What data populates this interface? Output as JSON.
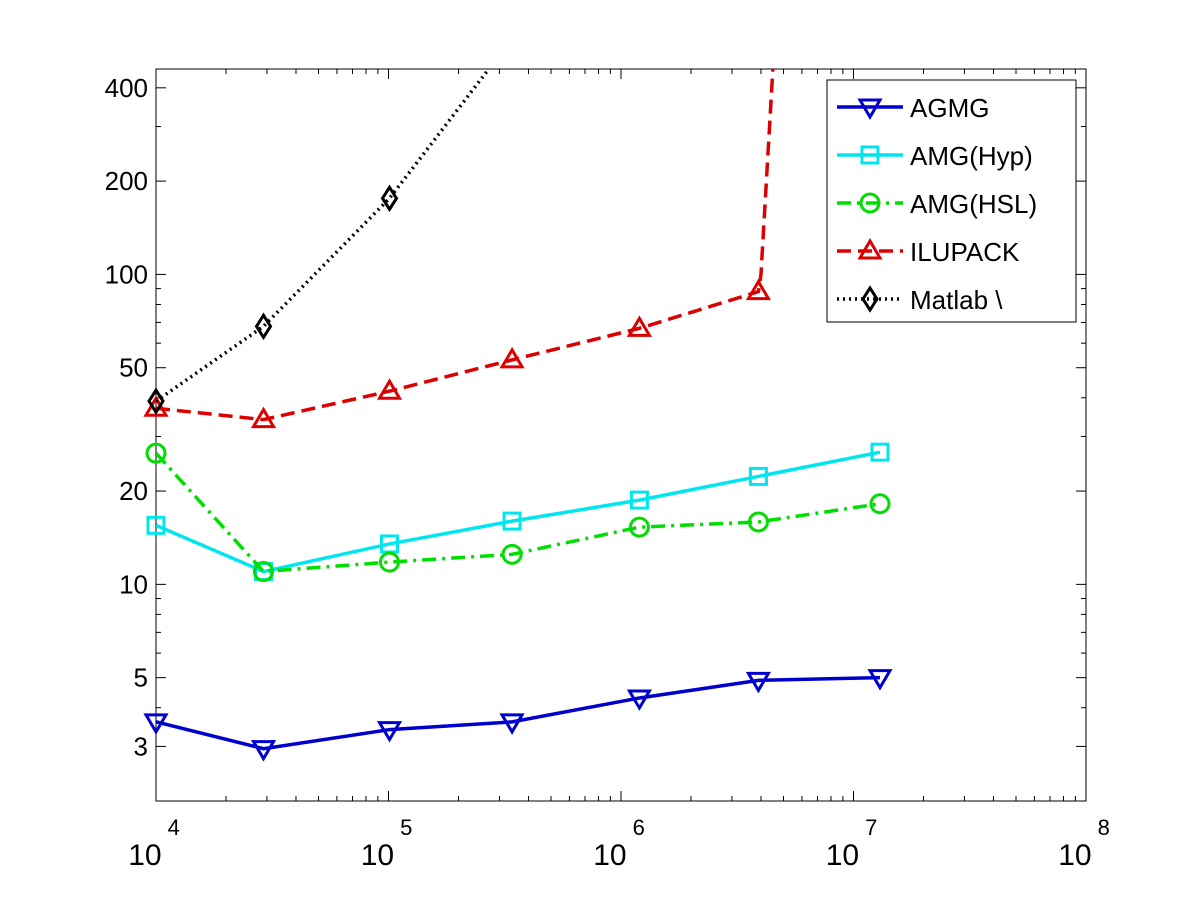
{
  "chart_data": {
    "type": "line",
    "title": "",
    "xlabel": "",
    "ylabel": "",
    "x_scale": "log",
    "y_scale": "log",
    "xlim": [
      10000,
      100000000
    ],
    "ylim": [
      2,
      460
    ],
    "x_ticks": [
      {
        "value": 10000,
        "base": "10",
        "exp": "4"
      },
      {
        "value": 100000,
        "base": "10",
        "exp": "5"
      },
      {
        "value": 1000000,
        "base": "10",
        "exp": "6"
      },
      {
        "value": 10000000,
        "base": "10",
        "exp": "7"
      },
      {
        "value": 100000000,
        "base": "10",
        "exp": "8"
      }
    ],
    "y_ticks": [
      3,
      5,
      10,
      20,
      50,
      100,
      200,
      400
    ],
    "y_tick_labels": [
      "3",
      "5",
      "10",
      "20",
      "50",
      "100",
      "200",
      "400"
    ],
    "grid": false,
    "legend_position": "top-right",
    "series": [
      {
        "name": "AGMG",
        "color": "#0000cc",
        "dash": "solid",
        "marker": "triangle-down",
        "x": [
          10000,
          29000,
          101000,
          340000,
          1200000,
          3900000,
          13000000
        ],
        "y": [
          3.6,
          2.95,
          3.4,
          3.6,
          4.3,
          4.9,
          5.0
        ]
      },
      {
        "name": "AMG(Hyp)",
        "color": "#00e5ee",
        "dash": "solid",
        "marker": "square",
        "x": [
          10000,
          29000,
          101000,
          340000,
          1200000,
          3900000,
          13000000
        ],
        "y": [
          15.5,
          11.0,
          13.5,
          16.0,
          18.7,
          22.3,
          26.7
        ]
      },
      {
        "name": "AMG(HSL)",
        "color": "#00dd00",
        "dash": "dashdot",
        "marker": "circle",
        "x": [
          10000,
          29000,
          101000,
          340000,
          1200000,
          3900000,
          13000000
        ],
        "y": [
          26.5,
          11.0,
          11.8,
          12.5,
          15.3,
          15.9,
          18.2
        ]
      },
      {
        "name": "ILUPACK",
        "color": "#dd0000",
        "dash": "dashed",
        "marker": "triangle-up",
        "x": [
          10000,
          29000,
          101000,
          340000,
          1200000,
          3900000,
          4000000,
          4500000
        ],
        "y": [
          37,
          34,
          42,
          53,
          67,
          88,
          100,
          460
        ]
      },
      {
        "name": "Matlab \\",
        "color": "#000000",
        "dash": "dotted",
        "marker": "diamond",
        "x": [
          10000,
          29000,
          101000,
          270000
        ],
        "y": [
          39,
          68,
          176,
          460
        ]
      }
    ]
  }
}
